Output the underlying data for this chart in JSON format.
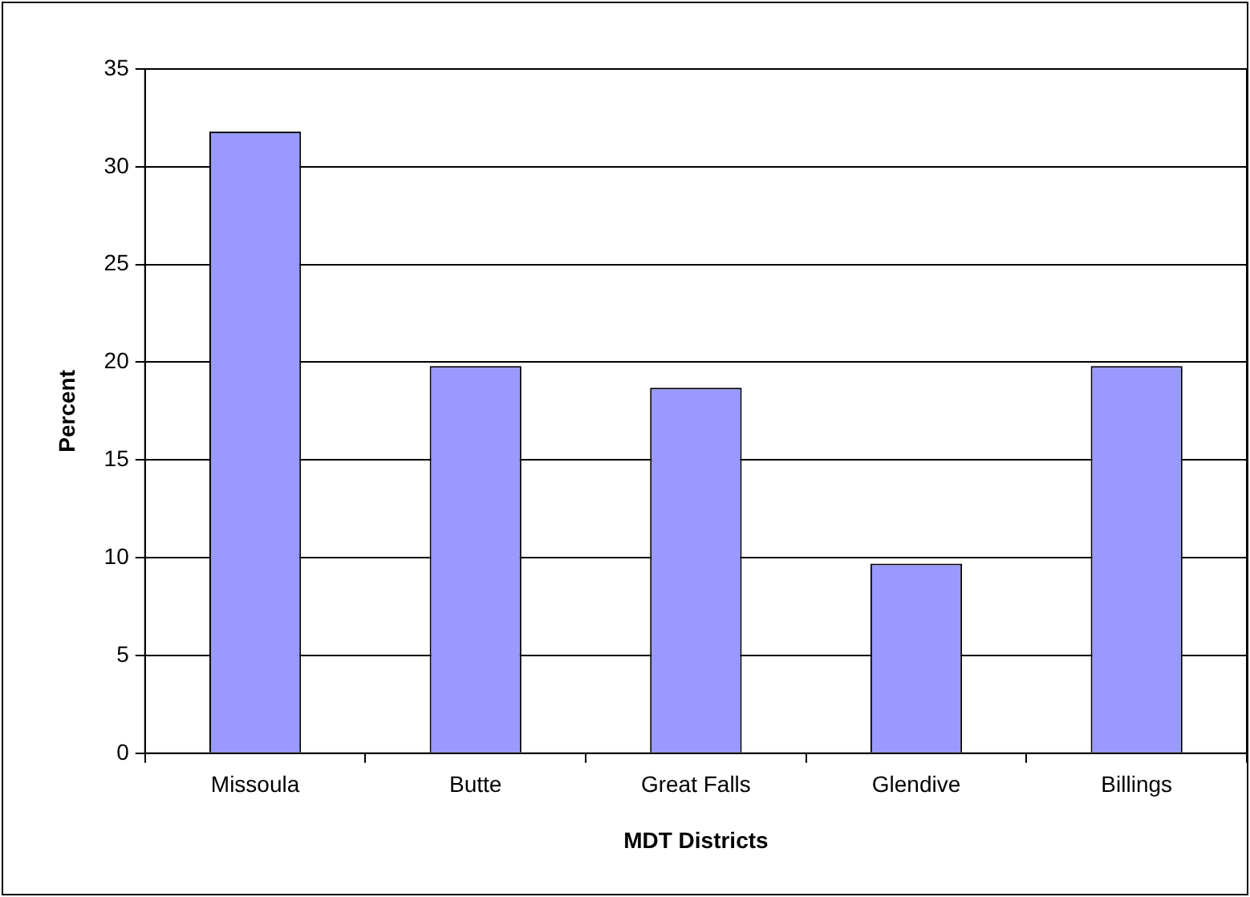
{
  "chart_data": {
    "type": "bar",
    "xlabel": "MDT Districts",
    "ylabel": "Percent",
    "categories": [
      "Missoula",
      "Butte",
      "Great Falls",
      "Glendive",
      "Billings"
    ],
    "values": [
      31.8,
      19.8,
      18.7,
      9.7,
      19.8
    ],
    "color": "#9999ff",
    "ylim": [
      0,
      35
    ],
    "yticks": [
      0,
      5,
      10,
      15,
      20,
      25,
      30,
      35
    ],
    "grid": "y",
    "legend": false
  }
}
